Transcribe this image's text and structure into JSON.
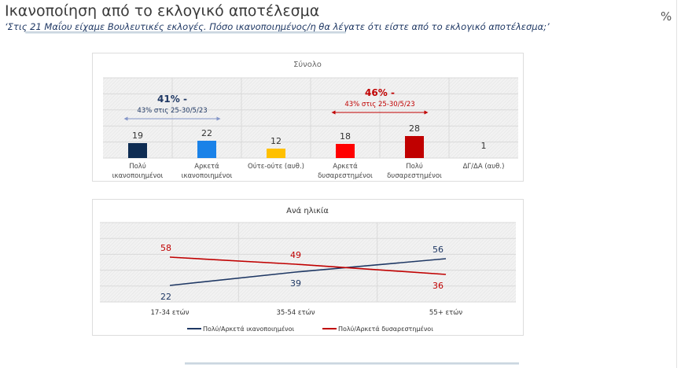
{
  "header": {
    "title": "Ικανοποίηση από το εκλογικό αποτέλεσμα",
    "subtitle": "‘Στις 21 Μαΐου είχαμε Βουλευτικές εκλογές. Πόσο ικανοποιημένος/η θα λέγατε ότι είστε από το εκλογικό αποτέλεσμα;’",
    "unit": "%"
  },
  "chart_data": [
    {
      "type": "bar",
      "title": "Σύνολο",
      "categories": [
        [
          "Πολύ",
          "ικανοποιημένοι"
        ],
        [
          "Αρκετά",
          "ικανοποιημένοι"
        ],
        [
          "Ούτε-ούτε (αυθ.)"
        ],
        [
          "Αρκετά",
          "δυσαρεστημένοι"
        ],
        [
          "Πολύ",
          "δυσαρεστημένοι"
        ],
        [
          "ΔΓ/ΔΑ (αυθ.)"
        ]
      ],
      "values": [
        19,
        22,
        12,
        18,
        28,
        1
      ],
      "colors": [
        "#0e2c52",
        "#1a82e8",
        "#ffc000",
        "#ff0000",
        "#c00000",
        "#888888"
      ],
      "annotations": [
        {
          "main": "41% -",
          "sub": "43% στις 25-30/5/23",
          "color": "#1f3864",
          "arrow_color": "#8496c8",
          "spans": [
            0,
            1
          ]
        },
        {
          "main": "46% -",
          "sub": "43% στις 25-30/5/23",
          "color": "#c00000",
          "arrow_color": "#c00000",
          "spans": [
            3,
            4
          ]
        }
      ],
      "grid": true
    },
    {
      "type": "line",
      "title": "Ανά ηλικία",
      "categories": [
        "17-34 ετών",
        "35-54 ετών",
        "55+ ετών"
      ],
      "series": [
        {
          "name": "Πολύ/Αρκετά ικανοποιημένοι",
          "values": [
            22,
            39,
            56
          ],
          "color": "#1f3864"
        },
        {
          "name": "Πολύ/Αρκετά δυσαρεστημένοι",
          "values": [
            58,
            49,
            36
          ],
          "color": "#c00000"
        }
      ],
      "legend": "bottom",
      "grid": true
    }
  ]
}
